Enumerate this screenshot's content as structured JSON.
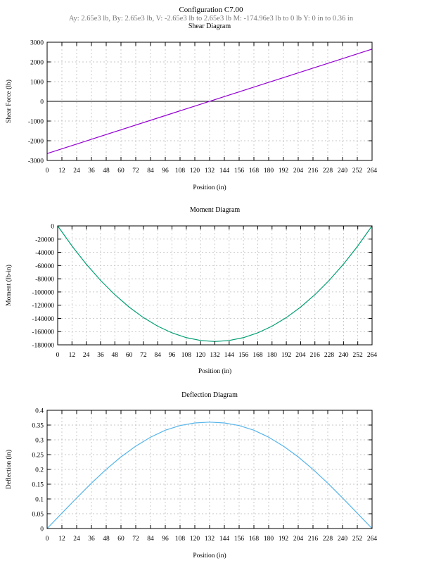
{
  "figure": {
    "title": "Configuration C7.00",
    "subtitle": "Ay: 2.65e3 lb, By: 2.65e3 lb,  V: -2.65e3 lb to 2.65e3 lb  M: -174.96e3 lb to 0 lb  Y: 0 in to 0.36 in"
  },
  "colors": {
    "shear": "#9400d3",
    "moment": "#009e73",
    "deflection": "#56b4e9",
    "zero_line": "#000000"
  },
  "chart_data": [
    {
      "type": "line",
      "title": "Shear Diagram",
      "xlabel": "Position (in)",
      "ylabel": "Shear Force (lb)",
      "xlim": [
        0,
        264
      ],
      "ylim": [
        -3000,
        3000
      ],
      "xticks": [
        0,
        12,
        24,
        36,
        48,
        60,
        72,
        84,
        96,
        108,
        120,
        132,
        144,
        156,
        168,
        180,
        192,
        204,
        216,
        228,
        240,
        252,
        264
      ],
      "yticks": [
        -3000,
        -2000,
        -1000,
        0,
        1000,
        2000,
        3000
      ],
      "grid": true,
      "zero_line": true,
      "series": [
        {
          "color": "#9400d3",
          "x": [
            0,
            264
          ],
          "y": [
            -2650,
            2650
          ]
        }
      ]
    },
    {
      "type": "line",
      "title": "Moment Diagram",
      "xlabel": "Position (in)",
      "ylabel": "Moment (lb-in)",
      "xlim": [
        0,
        264
      ],
      "ylim": [
        -180000,
        0
      ],
      "xticks": [
        0,
        12,
        24,
        36,
        48,
        60,
        72,
        84,
        96,
        108,
        120,
        132,
        144,
        156,
        168,
        180,
        192,
        204,
        216,
        228,
        240,
        252,
        264
      ],
      "yticks": [
        -180000,
        -160000,
        -140000,
        -120000,
        -100000,
        -80000,
        -60000,
        -40000,
        -20000,
        0
      ],
      "grid": true,
      "series": [
        {
          "color": "#009e73",
          "x": [
            0,
            12,
            24,
            36,
            48,
            60,
            72,
            84,
            96,
            108,
            120,
            132,
            144,
            156,
            168,
            180,
            192,
            204,
            216,
            228,
            240,
            252,
            264
          ],
          "y": [
            0,
            -30369,
            -57843,
            -82422,
            -104106,
            -122895,
            -138790,
            -151789,
            -161893,
            -169102,
            -173416,
            -174960,
            -173416,
            -169102,
            -161893,
            -151789,
            -138790,
            -122895,
            -104106,
            -82422,
            -57843,
            -30369,
            0
          ]
        }
      ]
    },
    {
      "type": "line",
      "title": "Deflection Diagram",
      "xlabel": "Position (in)",
      "ylabel": "Deflection (in)",
      "xlim": [
        0,
        264
      ],
      "ylim": [
        0,
        0.4
      ],
      "xticks": [
        0,
        12,
        24,
        36,
        48,
        60,
        72,
        84,
        96,
        108,
        120,
        132,
        144,
        156,
        168,
        180,
        192,
        204,
        216,
        228,
        240,
        252,
        264
      ],
      "yticks": [
        0,
        0.05,
        0.1,
        0.15,
        0.2,
        0.25,
        0.3,
        0.35,
        0.4
      ],
      "grid": true,
      "series": [
        {
          "color": "#56b4e9",
          "x": [
            0,
            12,
            24,
            36,
            48,
            60,
            72,
            84,
            96,
            108,
            120,
            132,
            144,
            156,
            168,
            180,
            192,
            204,
            216,
            228,
            240,
            252,
            264
          ],
          "y": [
            0,
            0.0519,
            0.1033,
            0.1533,
            0.2001,
            0.2422,
            0.2787,
            0.309,
            0.3325,
            0.3483,
            0.3571,
            0.36,
            0.3571,
            0.3483,
            0.3325,
            0.309,
            0.2787,
            0.2422,
            0.2001,
            0.1533,
            0.1033,
            0.0519,
            0
          ]
        }
      ]
    }
  ]
}
